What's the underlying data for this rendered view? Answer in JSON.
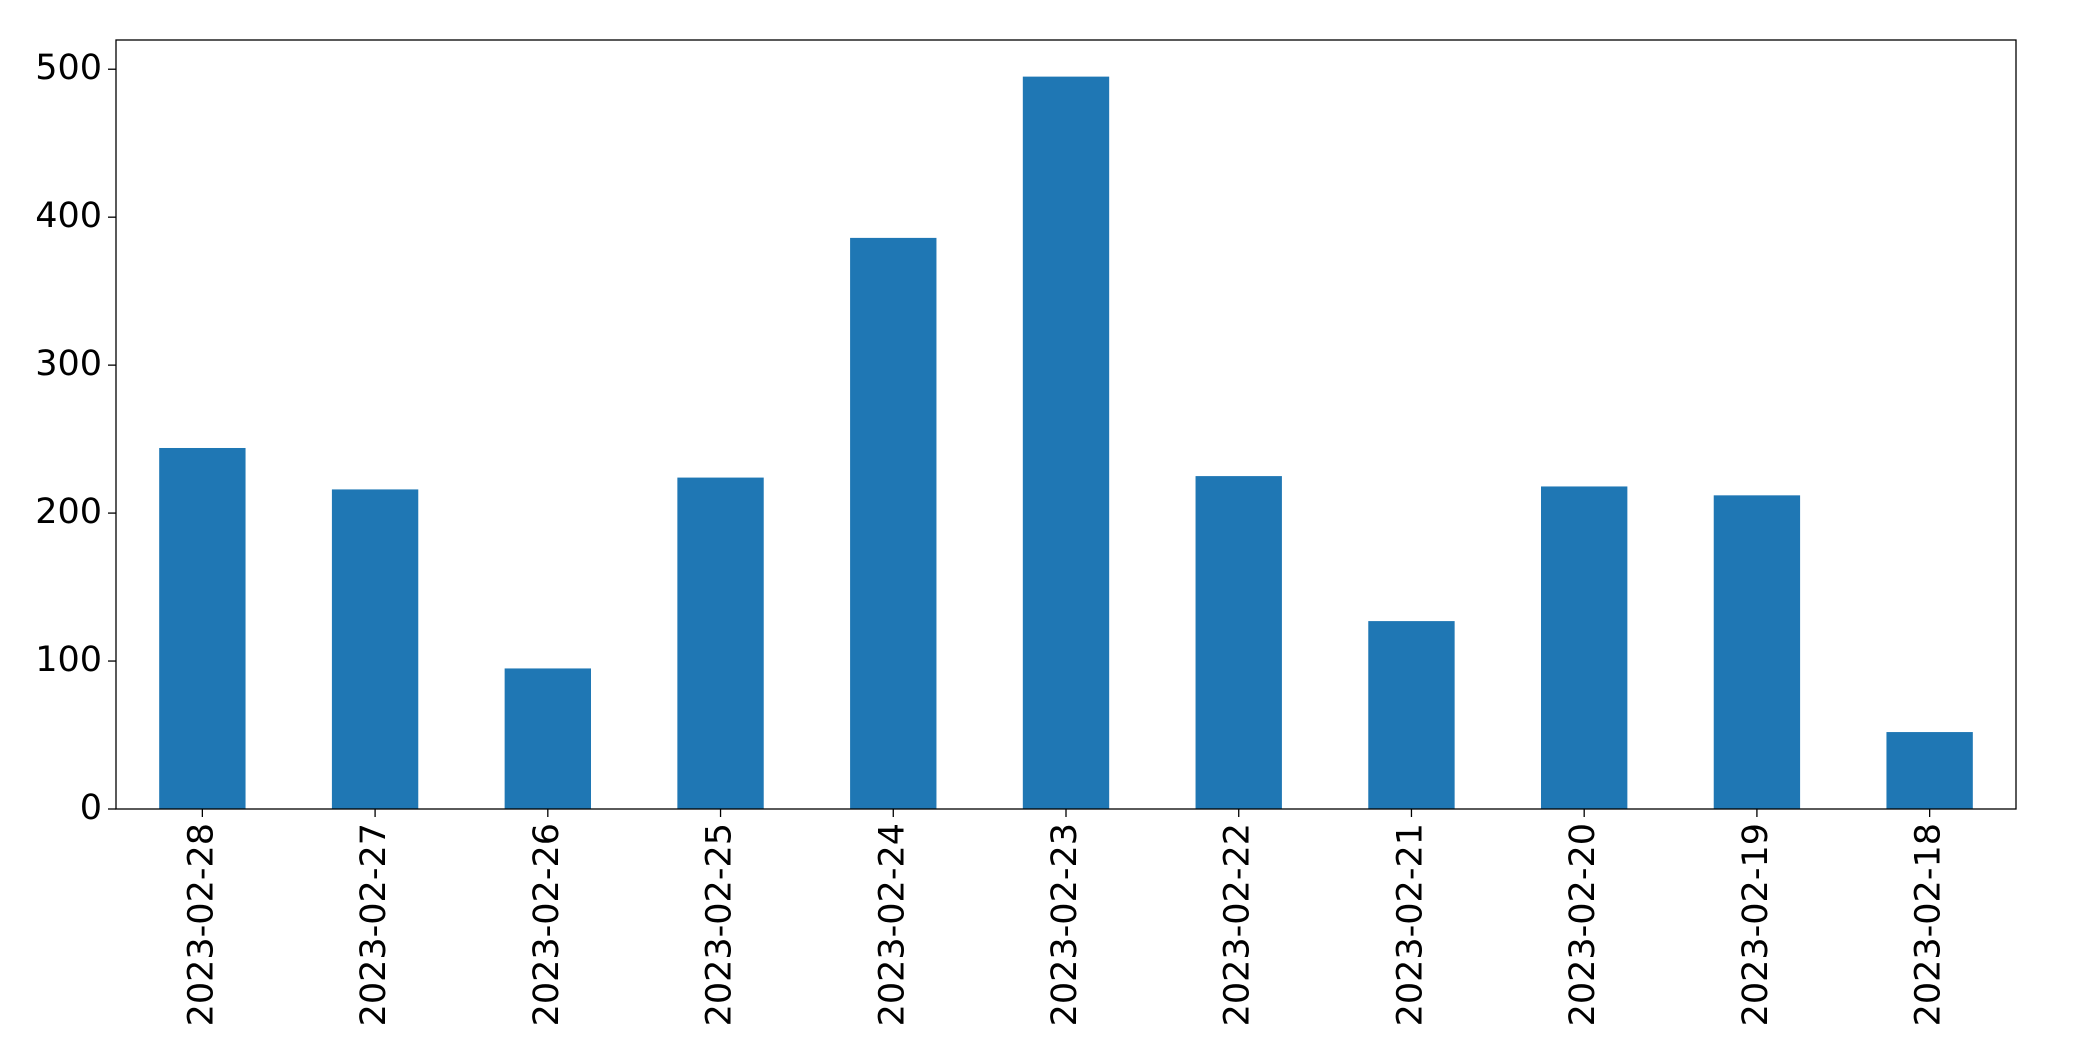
{
  "chart_data": {
    "type": "bar",
    "categories": [
      "2023-02-28",
      "2023-02-27",
      "2023-02-26",
      "2023-02-25",
      "2023-02-24",
      "2023-02-23",
      "2023-02-22",
      "2023-02-21",
      "2023-02-20",
      "2023-02-19",
      "2023-02-18"
    ],
    "values": [
      244,
      216,
      95,
      224,
      386,
      495,
      225,
      127,
      218,
      212,
      52
    ],
    "color": "#1f77b4",
    "ylim": [
      0,
      519.75
    ],
    "yticks": [
      0,
      100,
      200,
      300,
      400,
      500
    ],
    "grid": false
  }
}
